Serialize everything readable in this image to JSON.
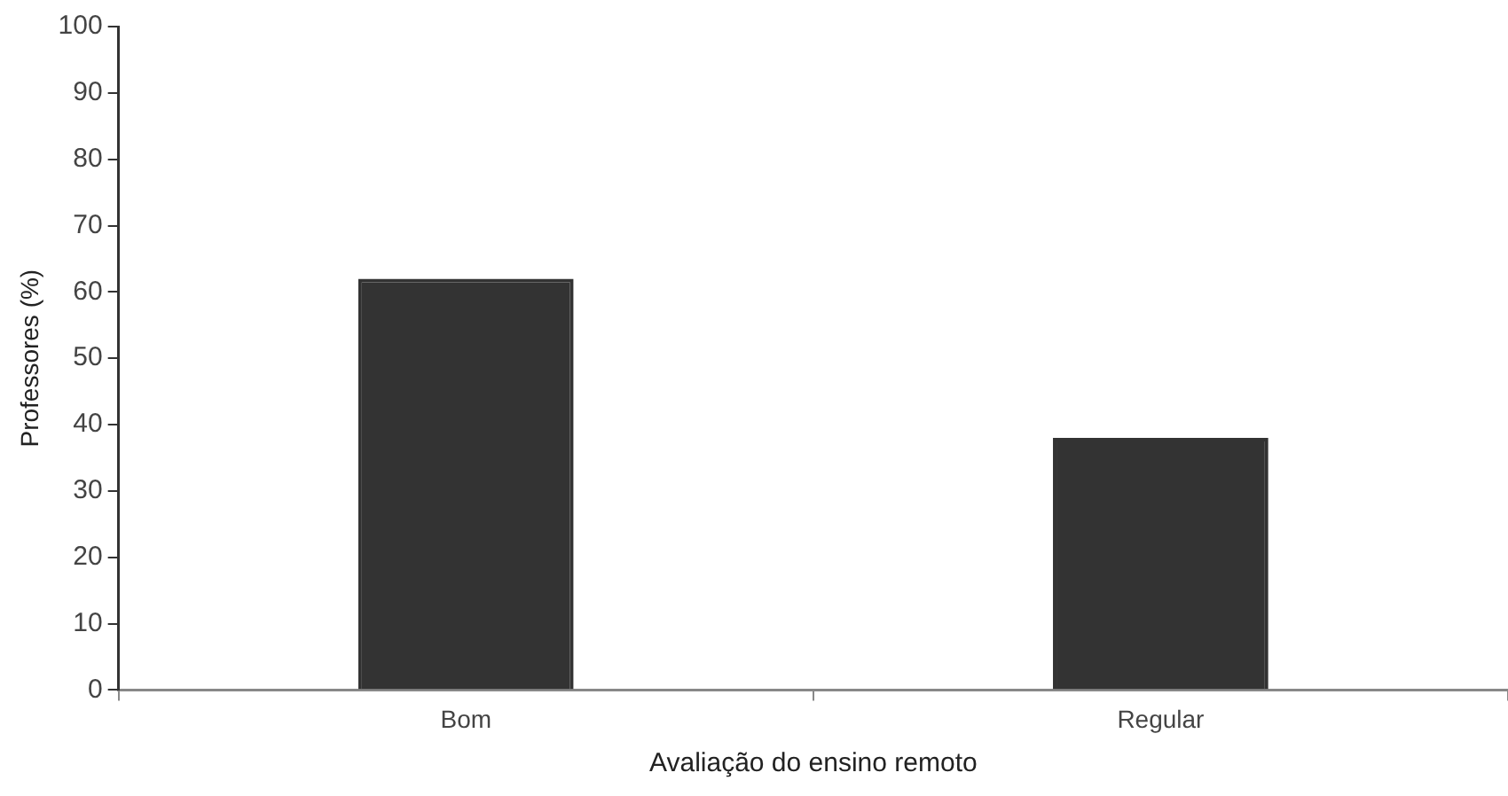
{
  "chart_data": {
    "type": "bar",
    "xlabel": "Avaliação do ensino remoto",
    "ylabel": "Professores (%)",
    "categories": [
      "Bom",
      "Regular"
    ],
    "values": [
      62,
      38
    ],
    "color": "#333333",
    "ylim": [
      0,
      100
    ],
    "yticks": [
      0,
      10,
      20,
      30,
      40,
      50,
      60,
      70,
      80,
      90,
      100
    ],
    "grid": false,
    "legend": false
  }
}
